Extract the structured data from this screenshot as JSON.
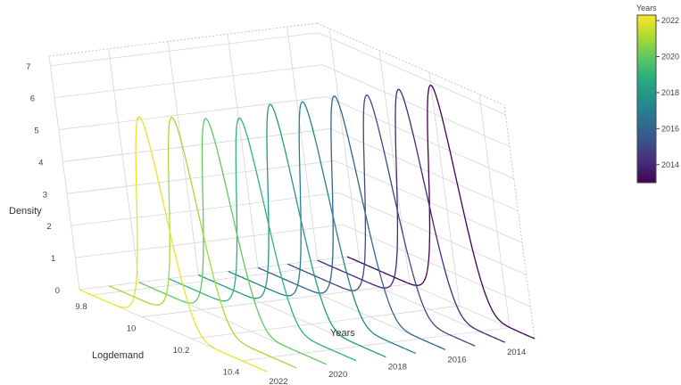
{
  "chart_data": {
    "type": "3d-line",
    "title": "",
    "zlabel": "Density",
    "xlabel": "Logdemand",
    "ylabel": "Years",
    "x_ticks": [
      "9.8",
      "10",
      "10.2",
      "10.4"
    ],
    "y_ticks": [
      "2014",
      "2016",
      "2018",
      "2020",
      "2022"
    ],
    "z_ticks": [
      "0",
      "1",
      "2",
      "3",
      "4",
      "5",
      "6",
      "7"
    ],
    "xlim": [
      9.75,
      10.5
    ],
    "ylim": [
      2013,
      2022
    ],
    "zlim": [
      0,
      7.3
    ],
    "colorbar": {
      "title": "Years",
      "ticks": [
        "2014",
        "2016",
        "2018",
        "2020",
        "2022"
      ],
      "range": [
        2013,
        2022.3
      ],
      "colorscale": "viridis"
    },
    "series": [
      {
        "year": 2013,
        "center": 10.2,
        "sd": 0.055,
        "peak": 6.9
      },
      {
        "year": 2014,
        "center": 10.19,
        "sd": 0.055,
        "peak": 6.85
      },
      {
        "year": 2015,
        "center": 10.18,
        "sd": 0.055,
        "peak": 6.75
      },
      {
        "year": 2016,
        "center": 10.17,
        "sd": 0.055,
        "peak": 6.8
      },
      {
        "year": 2017,
        "center": 10.16,
        "sd": 0.055,
        "peak": 6.7
      },
      {
        "year": 2018,
        "center": 10.15,
        "sd": 0.055,
        "peak": 6.7
      },
      {
        "year": 2019,
        "center": 10.14,
        "sd": 0.055,
        "peak": 6.35
      },
      {
        "year": 2020,
        "center": 10.125,
        "sd": 0.055,
        "peak": 6.4
      },
      {
        "year": 2021,
        "center": 10.11,
        "sd": 0.055,
        "peak": 6.5
      },
      {
        "year": 2022,
        "center": 10.1,
        "sd": 0.055,
        "peak": 6.6
      }
    ]
  }
}
